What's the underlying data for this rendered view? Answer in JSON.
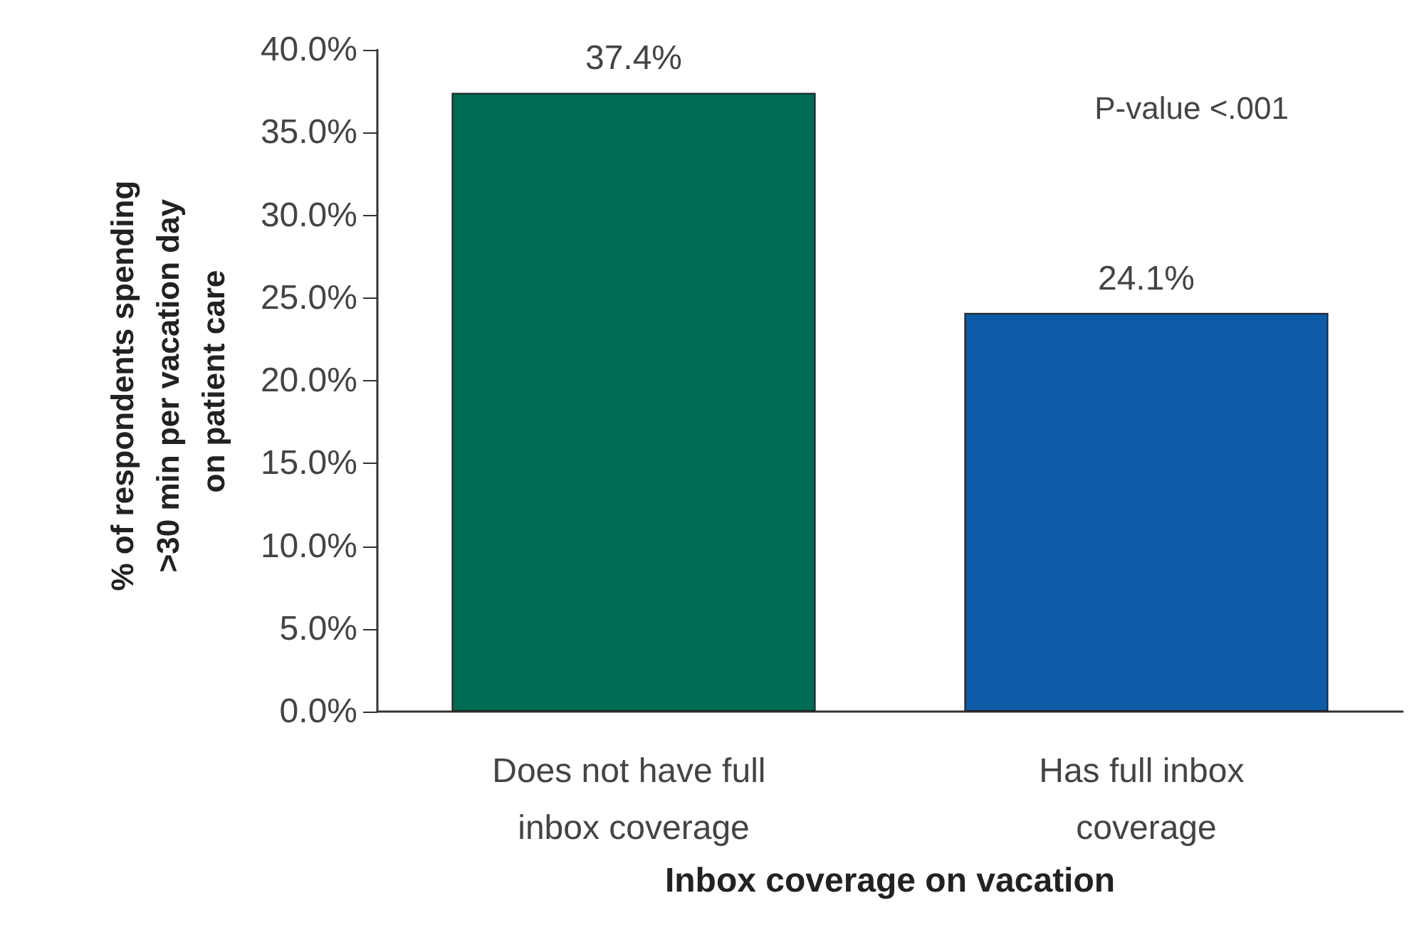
{
  "chart_data": {
    "type": "bar",
    "xlabel": "Inbox coverage on vacation",
    "ylabel": "% of respondents spending >30 min per vacation day on patient care",
    "categories": [
      "Does not have full inbox coverage",
      "Has full inbox coverage"
    ],
    "values": [
      37.4,
      24.1
    ],
    "colors": [
      "#006b54",
      "#0d5aa7"
    ],
    "value_labels": [
      "37.4%",
      "24.1%"
    ],
    "ylim": [
      0,
      40
    ],
    "yticks": [
      {
        "value": 0,
        "label": "0.0%"
      },
      {
        "value": 5,
        "label": "5.0%"
      },
      {
        "value": 10,
        "label": "10.0%"
      },
      {
        "value": 15,
        "label": "15.0%"
      },
      {
        "value": 20,
        "label": "20.0%"
      },
      {
        "value": 25,
        "label": "25.0%"
      },
      {
        "value": 30,
        "label": "30.0%"
      },
      {
        "value": 35,
        "label": "35.0%"
      },
      {
        "value": 40,
        "label": "40.0%"
      }
    ],
    "annotations": [
      "P-value <.001"
    ],
    "grid": false
  }
}
